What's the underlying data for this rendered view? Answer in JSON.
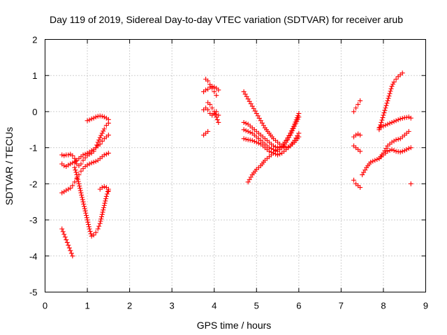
{
  "chart_data": {
    "type": "scatter",
    "title": "Day 119 of 2019, Sidereal Day-to-day VTEC variation (SDTVAR) for receiver arub",
    "xlabel": "GPS time / hours",
    "ylabel": "SDTVAR / TECUs",
    "xlim": [
      0,
      9
    ],
    "ylim": [
      -5,
      2
    ],
    "xticks": [
      "0",
      "1",
      "2",
      "3",
      "4",
      "5",
      "6",
      "7",
      "8",
      "9"
    ],
    "yticks": [
      "2",
      "1",
      "0",
      "-1",
      "-2",
      "-3",
      "-4",
      "-5"
    ],
    "grid": true,
    "marker": "plus",
    "color": "#ff0000",
    "series": [
      {
        "x": [
          0.4,
          0.45,
          0.5,
          0.55,
          0.6,
          0.65,
          0.7,
          0.75,
          0.8,
          0.85,
          0.9,
          0.95,
          1.0,
          1.05,
          1.1,
          1.15,
          1.2,
          1.25,
          1.3,
          1.35,
          1.4,
          1.45,
          1.5
        ],
        "y": [
          -1.2,
          -1.22,
          -1.2,
          -1.2,
          -1.18,
          -1.22,
          -1.3,
          -1.45,
          -1.5,
          -1.45,
          -1.35,
          -1.28,
          -1.22,
          -1.18,
          -1.15,
          -1.1,
          -1.0,
          -0.85,
          -0.72,
          -0.6,
          -0.48,
          -0.38,
          -0.32
        ]
      },
      {
        "x": [
          0.4,
          0.45,
          0.5,
          0.55,
          0.6,
          0.65,
          0.7,
          0.75,
          0.8,
          0.85,
          0.9,
          0.95,
          1.0,
          1.05,
          1.1,
          1.15,
          1.2,
          1.25,
          1.3,
          1.35,
          1.4,
          1.45,
          1.5
        ],
        "y": [
          -1.45,
          -1.5,
          -1.52,
          -1.48,
          -1.45,
          -1.42,
          -1.4,
          -1.35,
          -1.3,
          -1.25,
          -1.2,
          -1.18,
          -1.15,
          -1.12,
          -1.08,
          -1.05,
          -1.0,
          -0.95,
          -0.9,
          -0.82,
          -0.75,
          -0.7,
          -0.65
        ]
      },
      {
        "x": [
          0.4,
          0.45,
          0.5,
          0.55,
          0.6,
          0.65,
          0.7,
          0.75,
          0.8,
          0.85,
          0.9,
          0.95,
          1.0,
          1.05,
          1.1,
          1.15,
          1.2,
          1.25,
          1.3,
          1.35,
          1.4,
          1.45,
          1.5
        ],
        "y": [
          -2.25,
          -2.22,
          -2.18,
          -2.15,
          -2.12,
          -2.05,
          -1.95,
          -1.85,
          -1.75,
          -1.65,
          -1.58,
          -1.52,
          -1.48,
          -1.45,
          -1.42,
          -1.4,
          -1.38,
          -1.35,
          -1.3,
          -1.25,
          -1.2,
          -1.18,
          -1.15
        ]
      },
      {
        "x": [
          0.7,
          0.75,
          0.8,
          0.85,
          0.9,
          0.95,
          1.0,
          1.05,
          1.1,
          1.15,
          1.2,
          1.25,
          1.3,
          1.35,
          1.4,
          1.45,
          1.5
        ],
        "y": [
          -1.55,
          -1.75,
          -2.0,
          -2.25,
          -2.5,
          -2.75,
          -3.0,
          -3.25,
          -3.45,
          -3.42,
          -3.35,
          -3.25,
          -3.1,
          -2.85,
          -2.6,
          -2.35,
          -2.15
        ]
      },
      {
        "x": [
          1.0,
          1.05,
          1.1,
          1.15,
          1.2,
          1.25,
          1.3,
          1.35,
          1.4,
          1.45,
          1.5
        ],
        "y": [
          -0.25,
          -0.23,
          -0.2,
          -0.18,
          -0.15,
          -0.13,
          -0.12,
          -0.13,
          -0.15,
          -0.18,
          -0.22
        ]
      },
      {
        "x": [
          1.3,
          1.35,
          1.4,
          1.45,
          1.5
        ],
        "y": [
          -2.15,
          -2.1,
          -2.08,
          -2.1,
          -2.2
        ]
      },
      {
        "x": [
          0.4,
          0.45,
          0.5,
          0.55,
          0.6,
          0.65
        ],
        "y": [
          -3.25,
          -3.4,
          -3.55,
          -3.7,
          -3.85,
          -4.0
        ]
      },
      {
        "x": [
          3.75,
          3.8,
          3.85,
          3.9,
          3.95,
          4.0,
          4.05,
          4.1
        ],
        "y": [
          0.55,
          0.6,
          0.62,
          0.68,
          0.7,
          0.68,
          0.65,
          0.6
        ]
      },
      {
        "x": [
          3.8,
          3.85,
          3.9,
          3.95,
          4.0,
          4.05
        ],
        "y": [
          0.9,
          0.85,
          0.75,
          0.65,
          0.55,
          0.45
        ]
      },
      {
        "x": [
          3.75,
          3.8,
          3.85,
          3.9,
          3.95,
          4.0,
          4.05,
          4.1
        ],
        "y": [
          0.05,
          0.1,
          0.05,
          -0.05,
          -0.1,
          -0.05,
          0.0,
          -0.1
        ]
      },
      {
        "x": [
          3.85,
          3.9,
          3.95,
          4.0,
          4.05,
          4.1
        ],
        "y": [
          0.25,
          0.2,
          0.1,
          0.0,
          -0.15,
          -0.3
        ]
      },
      {
        "x": [
          3.75,
          3.8,
          3.85
        ],
        "y": [
          -0.65,
          -0.6,
          -0.55
        ]
      },
      {
        "x": [
          4.7,
          4.8,
          4.9,
          5.0,
          5.1,
          5.2,
          5.3,
          5.4,
          5.5,
          5.6,
          5.7,
          5.8,
          5.9,
          6.0
        ],
        "y": [
          0.55,
          0.35,
          0.15,
          -0.05,
          -0.25,
          -0.45,
          -0.6,
          -0.75,
          -0.85,
          -0.95,
          -1.0,
          -0.95,
          -0.85,
          -0.7
        ]
      },
      {
        "x": [
          4.7,
          4.8,
          4.9,
          5.0,
          5.1,
          5.2,
          5.3,
          5.4,
          5.5,
          5.6,
          5.7,
          5.8,
          5.9,
          6.0
        ],
        "y": [
          -0.3,
          -0.35,
          -0.45,
          -0.55,
          -0.65,
          -0.75,
          -0.85,
          -0.95,
          -1.0,
          -0.95,
          -0.8,
          -0.6,
          -0.35,
          -0.05
        ]
      },
      {
        "x": [
          4.7,
          4.8,
          4.9,
          5.0,
          5.1,
          5.2,
          5.3,
          5.4,
          5.5,
          5.6,
          5.7,
          5.8,
          5.9,
          6.0
        ],
        "y": [
          -0.5,
          -0.55,
          -0.6,
          -0.7,
          -0.8,
          -0.9,
          -1.0,
          -1.05,
          -1.1,
          -1.0,
          -0.85,
          -0.65,
          -0.4,
          -0.15
        ]
      },
      {
        "x": [
          4.7,
          4.8,
          4.9,
          5.0,
          5.1,
          5.2,
          5.3,
          5.4,
          5.5,
          5.6,
          5.7,
          5.8,
          5.9,
          6.0
        ],
        "y": [
          -0.75,
          -0.78,
          -0.8,
          -0.85,
          -0.9,
          -1.0,
          -1.1,
          -1.15,
          -1.2,
          -1.15,
          -1.05,
          -0.95,
          -0.8,
          -0.6
        ]
      },
      {
        "x": [
          4.8,
          4.9,
          5.0,
          5.1,
          5.2,
          5.3,
          5.4,
          5.5,
          5.6
        ],
        "y": [
          -1.95,
          -1.75,
          -1.6,
          -1.5,
          -1.35,
          -1.25,
          -1.15,
          -1.05,
          -0.95
        ]
      },
      {
        "x": [
          7.3,
          7.35,
          7.4,
          7.45
        ],
        "y": [
          0.0,
          0.1,
          0.2,
          0.3
        ]
      },
      {
        "x": [
          7.3,
          7.35,
          7.4,
          7.45
        ],
        "y": [
          -0.7,
          -0.65,
          -0.62,
          -0.65
        ]
      },
      {
        "x": [
          7.3,
          7.35,
          7.4,
          7.45
        ],
        "y": [
          -0.95,
          -1.0,
          -1.05,
          -1.1
        ]
      },
      {
        "x": [
          7.3,
          7.35,
          7.4,
          7.45
        ],
        "y": [
          -1.9,
          -2.0,
          -2.05,
          -2.1
        ]
      },
      {
        "x": [
          7.5,
          7.6,
          7.7,
          7.8,
          7.9,
          8.0,
          8.1,
          8.2,
          8.3,
          8.4,
          8.5,
          8.6
        ],
        "y": [
          -1.75,
          -1.55,
          -1.4,
          -1.35,
          -1.3,
          -1.15,
          -0.95,
          -0.85,
          -0.78,
          -0.75,
          -0.65,
          -0.55
        ]
      },
      {
        "x": [
          7.9,
          8.0,
          8.1,
          8.2,
          8.3,
          8.4,
          8.5,
          8.6,
          8.65
        ],
        "y": [
          -0.45,
          -0.4,
          -0.35,
          -0.3,
          -0.25,
          -0.2,
          -0.17,
          -0.15,
          -0.18
        ]
      },
      {
        "x": [
          7.9,
          7.95,
          8.0,
          8.05,
          8.1,
          8.15,
          8.2,
          8.25,
          8.3,
          8.35,
          8.4,
          8.45
        ],
        "y": [
          -0.5,
          -0.3,
          -0.1,
          0.1,
          0.3,
          0.5,
          0.7,
          0.82,
          0.9,
          0.97,
          1.02,
          1.07
        ]
      },
      {
        "x": [
          7.9,
          8.0,
          8.1,
          8.2,
          8.3,
          8.4,
          8.5,
          8.6,
          8.65
        ],
        "y": [
          -1.3,
          -1.2,
          -1.1,
          -1.05,
          -1.1,
          -1.12,
          -1.08,
          -1.02,
          -1.0
        ]
      },
      {
        "x": [
          8.65
        ],
        "y": [
          -2.0
        ]
      }
    ]
  }
}
